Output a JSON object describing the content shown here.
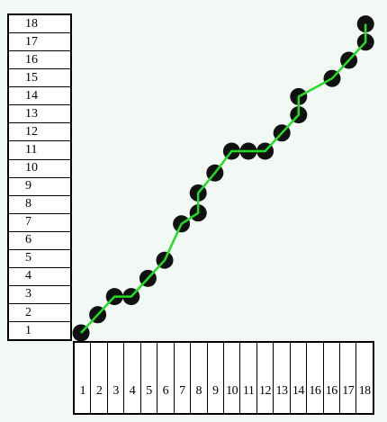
{
  "chart_data": {
    "type": "line",
    "x_labels": [
      "1",
      "2",
      "3",
      "4",
      "5",
      "6",
      "7",
      "8",
      "9",
      "10",
      "11",
      "12",
      "13",
      "14",
      "16",
      "16",
      "17",
      "18"
    ],
    "y_labels": [
      "18",
      "17",
      "16",
      "15",
      "14",
      "13",
      "12",
      "11",
      "10",
      "9",
      "8",
      "7",
      "6",
      "5",
      "4",
      "3",
      "2",
      "1"
    ],
    "points": [
      {
        "x": 1,
        "y": 1
      },
      {
        "x": 2,
        "y": 2
      },
      {
        "x": 3,
        "y": 3
      },
      {
        "x": 4,
        "y": 3
      },
      {
        "x": 5,
        "y": 4
      },
      {
        "x": 6,
        "y": 5
      },
      {
        "x": 7,
        "y": 7
      },
      {
        "x": 8,
        "y": 7.6
      },
      {
        "x": 8,
        "y": 8.7
      },
      {
        "x": 9,
        "y": 9.8
      },
      {
        "x": 10,
        "y": 11
      },
      {
        "x": 11,
        "y": 11
      },
      {
        "x": 12,
        "y": 11
      },
      {
        "x": 13,
        "y": 12
      },
      {
        "x": 14,
        "y": 13
      },
      {
        "x": 14,
        "y": 14
      },
      {
        "x": 16,
        "y": 15
      },
      {
        "x": 17,
        "y": 16
      },
      {
        "x": 18,
        "y": 17
      },
      {
        "x": 18,
        "y": 18
      }
    ],
    "line_color": "#22dd22",
    "marker_color": "#111111"
  }
}
